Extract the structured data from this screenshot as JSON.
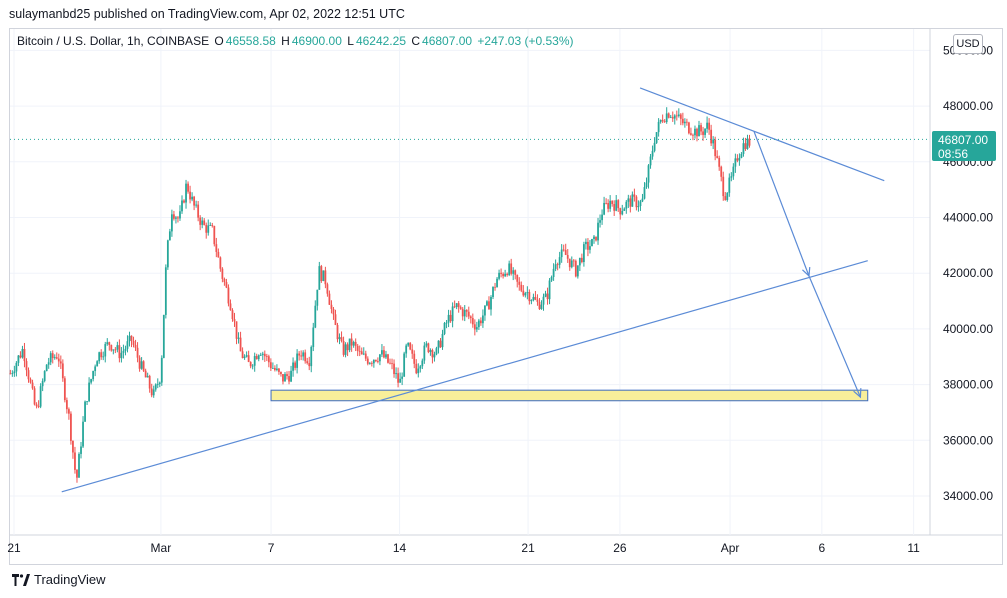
{
  "header": {
    "text": "sulaymanbd25 published on TradingView.com, Apr 02, 2022 12:51 UTC"
  },
  "legend": {
    "symbol": "Bitcoin / U.S. Dollar, 1h, COINBASE",
    "open_label": "O",
    "open": "46558.58",
    "high_label": "H",
    "high": "46900.00",
    "low_label": "L",
    "low": "46242.25",
    "close_label": "C",
    "close": "46807.00",
    "change": "+247.03 (+0.53%)"
  },
  "currency_button": "USD",
  "last_price": {
    "price": "46807.00",
    "countdown": "08:56"
  },
  "footer": {
    "brand": "TradingView"
  },
  "colors": {
    "up": "#26a69a",
    "down": "#ef5350",
    "drawing": "#5b8bd6",
    "zone_fill": "#f8ef9a",
    "zone_border": "#3c6bc4",
    "price_line": "#26a69a"
  },
  "chart_data": {
    "type": "candlestick",
    "title": "Bitcoin / U.S. Dollar, 1h, COINBASE",
    "ylim": [
      33000,
      50500
    ],
    "y_ticks": [
      "34000.00",
      "36000.00",
      "38000.00",
      "40000.00",
      "42000.00",
      "44000.00",
      "46000.00",
      "48000.00",
      "50000.00"
    ],
    "y_tick_values": [
      34000,
      36000,
      38000,
      40000,
      42000,
      44000,
      46000,
      48000,
      50000
    ],
    "x_ticks": [
      {
        "label": "21",
        "day": 0
      },
      {
        "label": "Mar",
        "day": 8
      },
      {
        "label": "7",
        "day": 14
      },
      {
        "label": "14",
        "day": 21
      },
      {
        "label": "21",
        "day": 28
      },
      {
        "label": "26",
        "day": 33
      },
      {
        "label": "Apr",
        "day": 39
      },
      {
        "label": "6",
        "day": 44
      },
      {
        "label": "11",
        "day": 49
      }
    ],
    "x_unit": "days since Feb 21, 2022",
    "price_path": [
      [
        -0.2,
        38400
      ],
      [
        0.5,
        39300
      ],
      [
        1.2,
        37000
      ],
      [
        1.8,
        38800
      ],
      [
        2.4,
        39100
      ],
      [
        3.0,
        36800
      ],
      [
        3.4,
        34500
      ],
      [
        3.9,
        37400
      ],
      [
        4.5,
        39000
      ],
      [
        5.2,
        39500
      ],
      [
        5.8,
        39100
      ],
      [
        6.4,
        39600
      ],
      [
        7.0,
        38500
      ],
      [
        7.6,
        37600
      ],
      [
        8.0,
        38400
      ],
      [
        8.3,
        42500
      ],
      [
        8.6,
        44300
      ],
      [
        9.0,
        43900
      ],
      [
        9.4,
        45200
      ],
      [
        9.8,
        44400
      ],
      [
        10.3,
        43700
      ],
      [
        10.8,
        43500
      ],
      [
        11.3,
        42000
      ],
      [
        11.8,
        40900
      ],
      [
        12.3,
        39200
      ],
      [
        12.8,
        38700
      ],
      [
        13.4,
        39300
      ],
      [
        14.0,
        38700
      ],
      [
        14.6,
        38200
      ],
      [
        15.1,
        38400
      ],
      [
        15.6,
        39200
      ],
      [
        16.1,
        38900
      ],
      [
        16.6,
        42100
      ],
      [
        17.0,
        41700
      ],
      [
        17.4,
        40300
      ],
      [
        17.9,
        39200
      ],
      [
        18.4,
        39500
      ],
      [
        18.9,
        39000
      ],
      [
        19.4,
        38900
      ],
      [
        20.0,
        39100
      ],
      [
        20.6,
        38600
      ],
      [
        21.0,
        38000
      ],
      [
        21.4,
        39400
      ],
      [
        21.9,
        38600
      ],
      [
        22.5,
        39400
      ],
      [
        23.0,
        39100
      ],
      [
        23.6,
        40300
      ],
      [
        24.1,
        40800
      ],
      [
        24.7,
        40500
      ],
      [
        25.2,
        40100
      ],
      [
        25.8,
        40800
      ],
      [
        26.3,
        41800
      ],
      [
        26.9,
        42200
      ],
      [
        27.5,
        41500
      ],
      [
        28.0,
        41300
      ],
      [
        28.5,
        40900
      ],
      [
        29.0,
        41100
      ],
      [
        29.5,
        42500
      ],
      [
        30.0,
        42700
      ],
      [
        30.6,
        42100
      ],
      [
        31.1,
        42900
      ],
      [
        31.6,
        43100
      ],
      [
        32.0,
        44200
      ],
      [
        32.5,
        44600
      ],
      [
        33.0,
        44300
      ],
      [
        33.6,
        44600
      ],
      [
        34.2,
        44500
      ],
      [
        34.6,
        45800
      ],
      [
        34.9,
        46900
      ],
      [
        35.3,
        47600
      ],
      [
        35.7,
        47800
      ],
      [
        36.1,
        47600
      ],
      [
        36.6,
        47300
      ],
      [
        37.1,
        47100
      ],
      [
        37.5,
        47100
      ],
      [
        37.8,
        47300
      ],
      [
        38.1,
        46600
      ],
      [
        38.4,
        45700
      ],
      [
        38.7,
        44800
      ],
      [
        39.1,
        45400
      ],
      [
        39.4,
        46200
      ],
      [
        39.8,
        46700
      ],
      [
        40.1,
        46700
      ]
    ],
    "drawings": {
      "lower_trendline": {
        "from": [
          2.6,
          34150
        ],
        "to": [
          46.5,
          42450
        ]
      },
      "upper_trendline": {
        "from": [
          34.1,
          48650
        ],
        "to": [
          47.4,
          45320
        ]
      },
      "support_zone": {
        "x": [
          14.0,
          46.5
        ],
        "y": [
          37420,
          37800
        ]
      },
      "arrow_1": {
        "from": [
          40.3,
          47100
        ],
        "to": [
          43.3,
          41900
        ]
      },
      "arrow_2": {
        "from": [
          43.3,
          41900
        ],
        "to": [
          46.1,
          37550
        ]
      },
      "last_price_line": 46807
    }
  }
}
